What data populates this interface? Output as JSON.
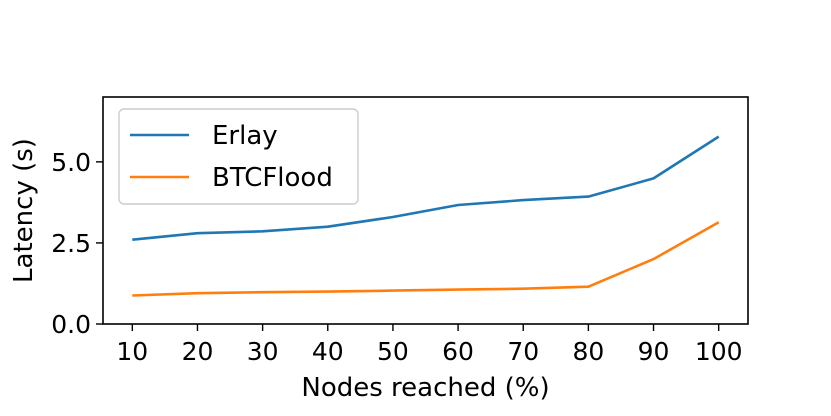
{
  "chart_data": {
    "type": "line",
    "title": "",
    "xlabel": "Nodes reached (%)",
    "ylabel": "Latency (s)",
    "x": [
      10,
      20,
      30,
      40,
      50,
      60,
      70,
      80,
      90,
      100
    ],
    "xticks": [
      "10",
      "20",
      "30",
      "40",
      "50",
      "60",
      "70",
      "80",
      "90",
      "100"
    ],
    "yticks": [
      "0.0",
      "2.5",
      "5.0"
    ],
    "ytick_values": [
      0.0,
      2.5,
      5.0
    ],
    "xlim": [
      5.5,
      104.5
    ],
    "ylim": [
      0,
      7.0
    ],
    "grid": false,
    "legend_position": "top-left",
    "series": [
      {
        "name": "Erlay",
        "color": "#1f77b4",
        "values": [
          2.6,
          2.8,
          2.86,
          3.0,
          3.3,
          3.67,
          3.82,
          3.93,
          4.49,
          5.78
        ]
      },
      {
        "name": "BTCFlood",
        "color": "#ff7f0e",
        "values": [
          0.88,
          0.95,
          0.98,
          1.0,
          1.03,
          1.06,
          1.09,
          1.15,
          2.0,
          3.14
        ]
      }
    ]
  }
}
